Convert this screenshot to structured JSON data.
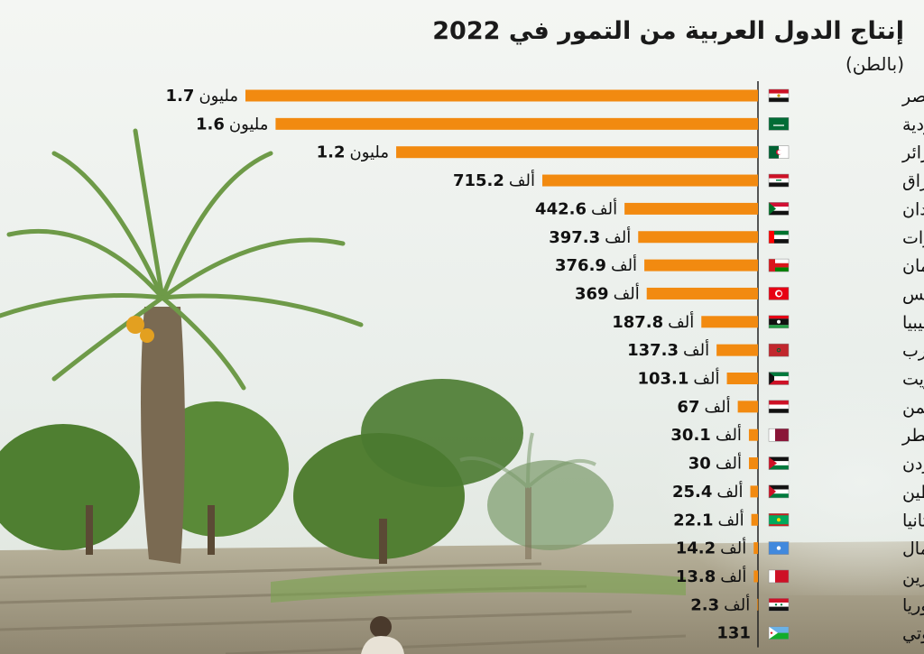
{
  "title": "إنتاج الدول العربية من التمور في 2022",
  "subtitle": "(بالطن)",
  "colors": {
    "bar": "#f28a10",
    "axis": "#222222",
    "sky": "#f1f4f2",
    "palm": "#5d8f3c"
  },
  "chart_data": {
    "type": "bar",
    "orientation": "horizontal",
    "title": "إنتاج الدول العربية من التمور في 2022",
    "subtitle": "(بالطن)",
    "xlabel": "",
    "ylabel": "",
    "unit": "طن",
    "grid": false,
    "categories": [
      "مصر",
      "السعودية",
      "الجزائر",
      "العراق",
      "السودان",
      "الإمارات",
      "سلطنة عُمان",
      "تونس",
      "ليبيا",
      "المغرب",
      "الكويت",
      "اليمن",
      "قطر",
      "الأردن",
      "فلسطين",
      "موريتانيا",
      "الصومال",
      "البحرين",
      "سوريا",
      "جيبوتي"
    ],
    "values": [
      1700000,
      1600000,
      1200000,
      715200,
      442600,
      397300,
      376900,
      369000,
      187800,
      137300,
      103100,
      67000,
      30100,
      30000,
      25400,
      22100,
      14200,
      13800,
      2300,
      131
    ],
    "labels": [
      {
        "num": "1.7",
        "unit": "مليون"
      },
      {
        "num": "1.6",
        "unit": "مليون"
      },
      {
        "num": "1.2",
        "unit": "مليون"
      },
      {
        "num": "715.2",
        "unit": "ألف"
      },
      {
        "num": "442.6",
        "unit": "ألف"
      },
      {
        "num": "397.3",
        "unit": "ألف"
      },
      {
        "num": "376.9",
        "unit": "ألف"
      },
      {
        "num": "369",
        "unit": "ألف"
      },
      {
        "num": "187.8",
        "unit": "ألف"
      },
      {
        "num": "137.3",
        "unit": "ألف"
      },
      {
        "num": "103.1",
        "unit": "ألف"
      },
      {
        "num": "67",
        "unit": "ألف"
      },
      {
        "num": "30.1",
        "unit": "ألف"
      },
      {
        "num": "30",
        "unit": "ألف"
      },
      {
        "num": "25.4",
        "unit": "ألف"
      },
      {
        "num": "22.1",
        "unit": "ألف"
      },
      {
        "num": "14.2",
        "unit": "ألف"
      },
      {
        "num": "13.8",
        "unit": "ألف"
      },
      {
        "num": "2.3",
        "unit": "ألف"
      },
      {
        "num": "131",
        "unit": ""
      }
    ],
    "flags": [
      "egypt-flag-icon",
      "saudi-flag-icon",
      "algeria-flag-icon",
      "iraq-flag-icon",
      "sudan-flag-icon",
      "uae-flag-icon",
      "oman-flag-icon",
      "tunisia-flag-icon",
      "libya-flag-icon",
      "morocco-flag-icon",
      "kuwait-flag-icon",
      "yemen-flag-icon",
      "qatar-flag-icon",
      "jordan-flag-icon",
      "palestine-flag-icon",
      "mauritania-flag-icon",
      "somalia-flag-icon",
      "bahrain-flag-icon",
      "syria-flag-icon",
      "djibouti-flag-icon"
    ]
  }
}
